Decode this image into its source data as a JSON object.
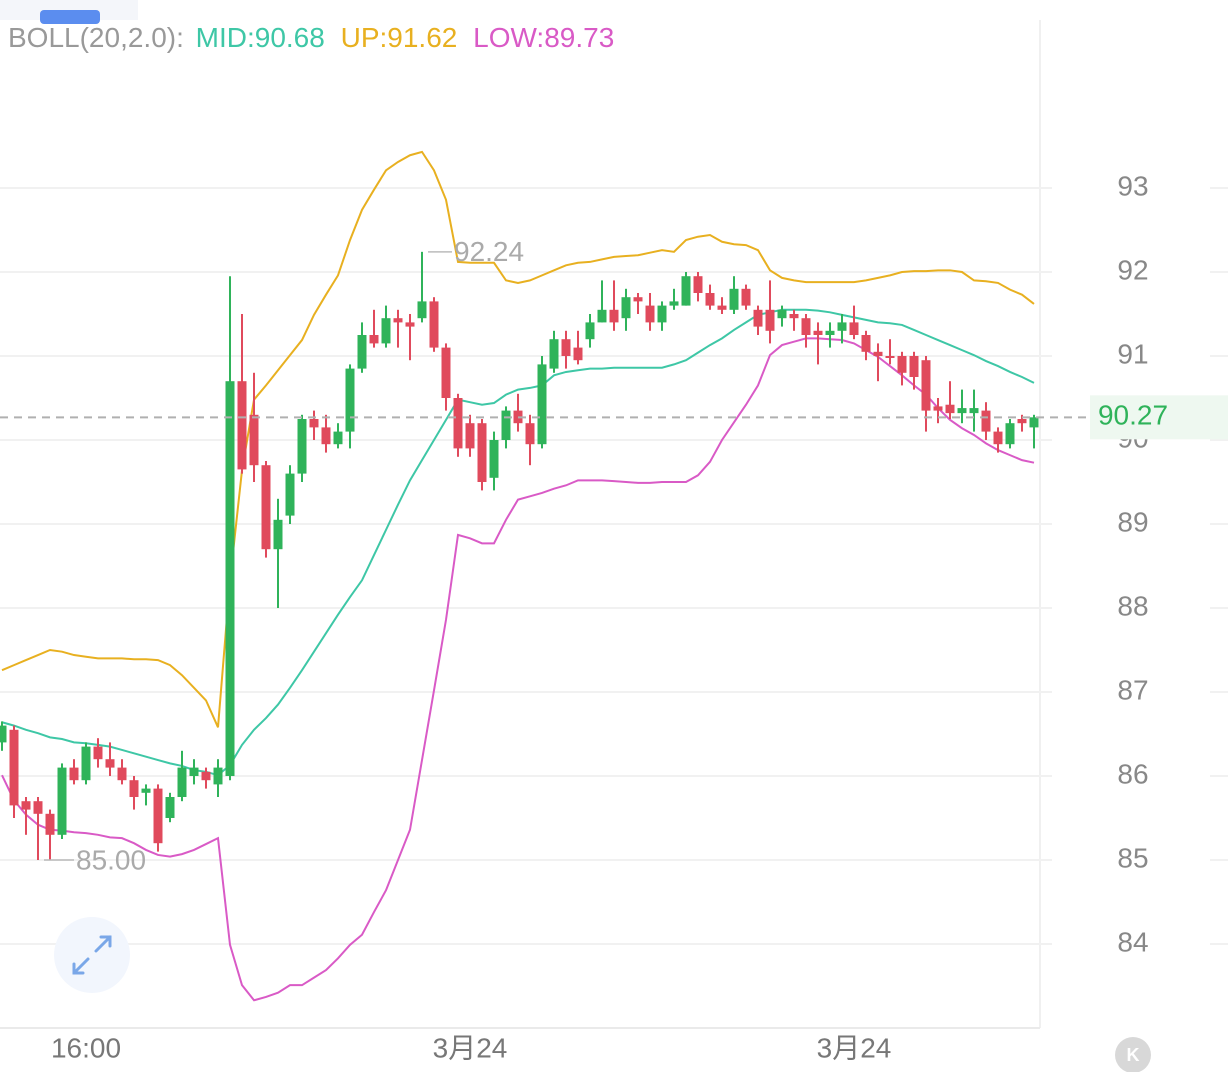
{
  "chart_data": {
    "type": "candlestick",
    "indicator": "BOLL(20,2.0):",
    "categories": [
      null,
      null,
      null,
      null,
      null,
      null,
      null,
      "16:00",
      null,
      null,
      null,
      null,
      null,
      null,
      null,
      null,
      null,
      null,
      null,
      null,
      null,
      null,
      null,
      null,
      null,
      null,
      null,
      null,
      null,
      null,
      null,
      null,
      null,
      null,
      null,
      null,
      null,
      null,
      null,
      "3月24",
      null,
      null,
      null,
      null,
      null,
      null,
      null,
      null,
      null,
      null,
      null,
      null,
      null,
      null,
      null,
      null,
      null,
      null,
      null,
      null,
      null,
      null,
      null,
      null,
      null,
      null,
      null,
      null,
      null,
      null,
      null,
      "3月24",
      null,
      null,
      null,
      null,
      null,
      null,
      null,
      null,
      null,
      null,
      null,
      null,
      null,
      null,
      null
    ],
    "open": [
      86.4,
      86.55,
      85.7,
      85.7,
      85.55,
      85.3,
      86.1,
      85.95,
      86.35,
      86.2,
      86.1,
      85.95,
      85.8,
      85.85,
      85.5,
      85.75,
      86.0,
      86.05,
      85.9,
      86.0,
      90.7,
      90.3,
      89.7,
      88.7,
      89.1,
      89.6,
      90.25,
      90.15,
      89.95,
      90.1,
      90.85,
      91.25,
      91.15,
      91.45,
      91.4,
      91.45,
      91.65,
      91.1,
      90.5,
      90.2,
      90.2,
      89.55,
      90.0,
      90.35,
      90.2,
      89.95,
      90.85,
      91.2,
      91.1,
      91.2,
      91.4,
      91.55,
      91.45,
      91.7,
      91.6,
      91.4,
      91.6,
      91.6,
      91.95,
      91.75,
      91.6,
      91.55,
      91.8,
      91.55,
      91.55,
      91.45,
      91.5,
      91.45,
      91.3,
      91.25,
      91.3,
      91.4,
      91.25,
      91.05,
      91.0,
      91.0,
      91.0,
      90.95,
      90.4,
      90.42,
      90.32,
      90.32,
      90.35,
      90.1,
      89.95,
      90.25,
      90.15
    ],
    "high": [
      86.65,
      86.6,
      85.75,
      85.75,
      85.6,
      86.15,
      86.2,
      86.4,
      86.45,
      86.4,
      86.2,
      86.0,
      85.9,
      85.9,
      85.8,
      86.3,
      86.2,
      86.1,
      86.2,
      91.95,
      91.5,
      90.8,
      89.75,
      89.3,
      89.7,
      90.3,
      90.35,
      90.3,
      90.2,
      90.9,
      91.4,
      91.55,
      91.6,
      91.55,
      91.5,
      92.24,
      91.7,
      91.15,
      90.55,
      90.3,
      90.25,
      90.1,
      90.4,
      90.55,
      90.3,
      91.0,
      91.3,
      91.3,
      91.3,
      91.5,
      91.9,
      91.9,
      91.8,
      91.75,
      91.75,
      91.65,
      91.8,
      92.0,
      92.0,
      91.85,
      91.7,
      91.95,
      91.85,
      91.6,
      91.9,
      91.6,
      91.55,
      91.5,
      91.4,
      91.4,
      91.5,
      91.6,
      91.3,
      91.15,
      91.2,
      91.05,
      91.05,
      91.0,
      90.5,
      90.7,
      90.6,
      90.6,
      90.45,
      90.15,
      90.25,
      90.3,
      90.3
    ],
    "low": [
      86.3,
      85.5,
      85.3,
      85.0,
      85.0,
      85.25,
      85.9,
      85.9,
      86.1,
      86.0,
      85.9,
      85.6,
      85.65,
      85.1,
      85.45,
      85.7,
      85.9,
      85.85,
      85.75,
      85.95,
      89.6,
      89.5,
      88.6,
      88.0,
      89.0,
      89.5,
      90.0,
      89.85,
      89.9,
      89.9,
      90.8,
      91.1,
      91.1,
      91.1,
      90.95,
      91.4,
      91.05,
      90.35,
      89.8,
      89.8,
      89.4,
      89.4,
      89.9,
      90.1,
      89.7,
      89.9,
      90.8,
      90.85,
      90.9,
      91.1,
      91.4,
      91.3,
      91.3,
      91.5,
      91.3,
      91.3,
      91.55,
      91.6,
      91.65,
      91.55,
      91.5,
      91.5,
      91.55,
      91.25,
      91.15,
      91.35,
      91.3,
      91.1,
      90.9,
      91.1,
      91.15,
      91.2,
      90.95,
      90.7,
      90.9,
      90.65,
      90.6,
      90.1,
      90.2,
      90.25,
      90.2,
      90.1,
      90.0,
      89.85,
      89.9,
      90.1,
      89.9
    ],
    "close": [
      86.6,
      85.65,
      85.6,
      85.55,
      85.3,
      86.1,
      85.95,
      86.35,
      86.2,
      86.1,
      85.95,
      85.75,
      85.85,
      85.2,
      85.75,
      86.1,
      86.1,
      85.95,
      86.1,
      90.7,
      89.65,
      89.7,
      88.7,
      89.05,
      89.6,
      90.25,
      90.15,
      89.95,
      90.1,
      90.85,
      91.25,
      91.15,
      91.45,
      91.4,
      91.35,
      91.65,
      91.1,
      90.5,
      89.9,
      89.9,
      89.5,
      90.0,
      90.35,
      90.2,
      89.95,
      90.9,
      91.2,
      91.0,
      90.95,
      91.4,
      91.55,
      91.4,
      91.7,
      91.65,
      91.4,
      91.6,
      91.65,
      91.95,
      91.75,
      91.6,
      91.55,
      91.8,
      91.6,
      91.35,
      91.3,
      91.55,
      91.45,
      91.25,
      91.25,
      91.3,
      91.4,
      91.25,
      91.05,
      91.0,
      90.98,
      90.8,
      90.75,
      90.35,
      90.35,
      90.32,
      90.38,
      90.38,
      90.1,
      89.95,
      90.2,
      90.2,
      90.27
    ],
    "up_color": "#2fb35a",
    "down_color": "#e04a5c",
    "series": [
      {
        "name": "MID:90.68",
        "color": "#3ec7a6",
        "values": [
          86.64,
          86.6,
          86.55,
          86.51,
          86.46,
          86.44,
          86.4,
          86.39,
          86.37,
          86.35,
          86.31,
          86.27,
          86.23,
          86.19,
          86.15,
          86.12,
          86.07,
          86.05,
          86.01,
          86.13,
          86.37,
          86.55,
          86.69,
          86.85,
          87.05,
          87.26,
          87.48,
          87.7,
          87.92,
          88.13,
          88.33,
          88.63,
          88.93,
          89.23,
          89.52,
          89.76,
          90.0,
          90.24,
          90.48,
          90.45,
          90.42,
          90.44,
          90.54,
          90.6,
          90.62,
          90.65,
          90.77,
          90.81,
          90.83,
          90.85,
          90.85,
          90.86,
          90.86,
          90.86,
          90.86,
          90.86,
          90.9,
          90.95,
          91.04,
          91.13,
          91.21,
          91.31,
          91.4,
          91.49,
          91.52,
          91.55,
          91.55,
          91.55,
          91.54,
          91.52,
          91.49,
          91.46,
          91.43,
          91.4,
          91.39,
          91.37,
          91.31,
          91.25,
          91.19,
          91.13,
          91.07,
          91.01,
          90.94,
          90.88,
          90.81,
          90.75,
          90.68
        ]
      },
      {
        "name": "UP:91.62",
        "color": "#e8b020",
        "values": [
          87.26,
          87.32,
          87.38,
          87.44,
          87.5,
          87.48,
          87.44,
          87.42,
          87.4,
          87.4,
          87.4,
          87.39,
          87.39,
          87.38,
          87.32,
          87.2,
          87.05,
          86.9,
          86.58,
          88.33,
          89.64,
          90.48,
          90.65,
          90.83,
          91.01,
          91.19,
          91.49,
          91.73,
          91.96,
          92.38,
          92.74,
          92.98,
          93.21,
          93.31,
          93.39,
          93.43,
          93.21,
          92.86,
          92.12,
          92.11,
          92.11,
          92.11,
          91.9,
          91.87,
          91.9,
          91.96,
          92.02,
          92.08,
          92.11,
          92.12,
          92.15,
          92.18,
          92.19,
          92.2,
          92.23,
          92.26,
          92.24,
          92.38,
          92.42,
          92.44,
          92.36,
          92.33,
          92.32,
          92.26,
          92.02,
          91.93,
          91.9,
          91.88,
          91.88,
          91.88,
          91.88,
          91.88,
          91.9,
          91.93,
          91.96,
          92.0,
          92.01,
          92.01,
          92.02,
          92.02,
          92.0,
          91.9,
          91.89,
          91.87,
          91.79,
          91.73,
          91.62
        ]
      },
      {
        "name": "LOW:89.73",
        "color": "#d95ac6",
        "values": [
          86.01,
          85.71,
          85.54,
          85.42,
          85.36,
          85.35,
          85.33,
          85.32,
          85.3,
          85.27,
          85.26,
          85.2,
          85.12,
          85.06,
          85.04,
          85.07,
          85.12,
          85.19,
          85.26,
          83.99,
          83.51,
          83.33,
          83.37,
          83.42,
          83.51,
          83.51,
          83.6,
          83.69,
          83.83,
          83.99,
          84.11,
          84.38,
          84.64,
          85.0,
          85.36,
          86.19,
          87.02,
          87.86,
          88.87,
          88.83,
          88.77,
          88.77,
          89.05,
          89.29,
          89.33,
          89.37,
          89.42,
          89.46,
          89.52,
          89.52,
          89.52,
          89.51,
          89.5,
          89.49,
          89.49,
          89.5,
          89.5,
          89.5,
          89.58,
          89.74,
          90.0,
          90.21,
          90.42,
          90.65,
          91.01,
          91.13,
          91.17,
          91.21,
          91.21,
          91.2,
          91.19,
          91.15,
          91.07,
          90.99,
          90.88,
          90.77,
          90.65,
          90.54,
          90.38,
          90.24,
          90.14,
          90.06,
          89.96,
          89.88,
          89.82,
          89.76,
          89.73
        ]
      }
    ],
    "last_price": 90.27,
    "max_label": 92.24,
    "min_label": {
      "value": 85,
      "label": "85.00"
    },
    "ylim": [
      83,
      95
    ],
    "yticks": [
      84,
      85,
      86,
      87,
      88,
      89,
      90,
      91,
      92,
      93
    ],
    "grid": true
  }
}
